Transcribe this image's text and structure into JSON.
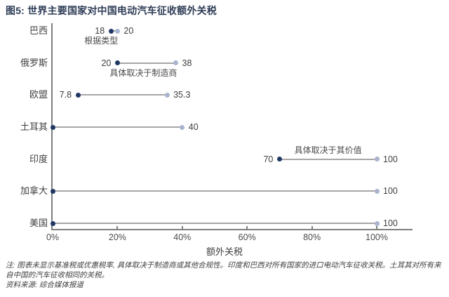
{
  "page": {
    "title": "图5: 世界主要国家对中国电动汽车征收额外关税"
  },
  "chart_data": {
    "type": "dumbbell",
    "title": "图5: 世界主要国家对中国电动汽车征收额外关税",
    "xlabel": "额外关税",
    "xlim": [
      0,
      100
    ],
    "x_ticks": [
      "0%",
      "20%",
      "40%",
      "60%",
      "80%",
      "100%"
    ],
    "x_tick_values": [
      0,
      20,
      40,
      60,
      80,
      100
    ],
    "grid": false,
    "categories": [
      "巴西",
      "俄罗斯",
      "欧盟",
      "土耳其",
      "印度",
      "加拿大",
      "美国"
    ],
    "rows": [
      {
        "category": "巴西",
        "start": 18,
        "end": 20,
        "start_label": "18",
        "end_label": "20",
        "annotation": {
          "text": "根据类型",
          "x": 15,
          "position": "below"
        }
      },
      {
        "category": "俄罗斯",
        "start": 20,
        "end": 38,
        "start_label": "20",
        "end_label": "38",
        "annotation": {
          "text": "具体取决于制造商",
          "x": 28,
          "position": "below"
        }
      },
      {
        "category": "欧盟",
        "start": 7.8,
        "end": 35.3,
        "start_label": "7.8",
        "end_label": "35.3"
      },
      {
        "category": "土耳其",
        "start": 0,
        "end": 40,
        "start_label": "",
        "end_label": "40"
      },
      {
        "category": "印度",
        "start": 70,
        "end": 100,
        "start_label": "70",
        "end_label": "100",
        "annotation": {
          "text": "具体取决于其价值",
          "x": 85,
          "position": "above"
        }
      },
      {
        "category": "加拿大",
        "start": 0,
        "end": 100,
        "start_label": "",
        "end_label": "100"
      },
      {
        "category": "美国",
        "start": 0,
        "end": 100,
        "start_label": "",
        "end_label": "100"
      }
    ],
    "colors": {
      "start_dot": "#1f3864",
      "end_dot": "#a9b4ce",
      "connector": "#a6a6a6",
      "axis": "#7f7f7f",
      "title": "#2e3c56",
      "label_text": "#3f3f3f"
    }
  },
  "notes": {
    "note": "注: 图表未显示基准税或优惠税率, 具体取决于制造商或其他合规性。印度和巴西对所有国家的进口电动汽车征收关税。土耳其对所有来自中国的汽车征收相同的关税。",
    "source": "资料来源: 综合媒体报道"
  }
}
